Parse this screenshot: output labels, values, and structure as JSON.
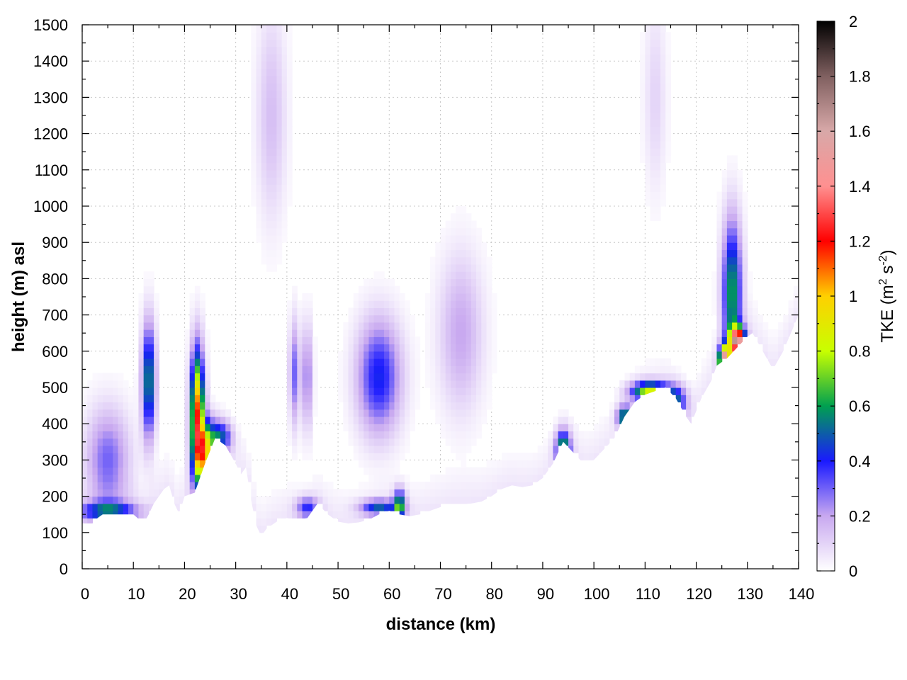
{
  "chart_data": {
    "type": "heatmap",
    "xlabel": "distance (km)",
    "ylabel": "height (m) asl",
    "xlim": [
      0,
      140
    ],
    "ylim": [
      0,
      1500
    ],
    "xticks": [
      "0",
      "10",
      "20",
      "30",
      "40",
      "50",
      "60",
      "70",
      "80",
      "90",
      "100",
      "110",
      "120",
      "130",
      "140"
    ],
    "yticks": [
      "0",
      "100",
      "200",
      "300",
      "400",
      "500",
      "600",
      "700",
      "800",
      "900",
      "1000",
      "1100",
      "1200",
      "1300",
      "1400",
      "1500"
    ],
    "grid": true,
    "colorbar": {
      "title": "TKE (m",
      "title_sup1": "2",
      "title_mid": " s",
      "title_sup2": "-2",
      "title_end": ")",
      "range": [
        0,
        2
      ],
      "ticks": [
        "0",
        "0.2",
        "0.4",
        "0.6",
        "0.8",
        "1",
        "1.2",
        "1.4",
        "1.6",
        "1.8",
        "2"
      ],
      "stops": [
        {
          "v": 0.0,
          "color": "#ffffff"
        },
        {
          "v": 0.2,
          "color": "#c8a8f0"
        },
        {
          "v": 0.4,
          "color": "#1a1aff"
        },
        {
          "v": 0.6,
          "color": "#00a050"
        },
        {
          "v": 0.8,
          "color": "#c8ff00"
        },
        {
          "v": 1.0,
          "color": "#ffd000"
        },
        {
          "v": 1.2,
          "color": "#ff0000"
        },
        {
          "v": 1.4,
          "color": "#ff9090"
        },
        {
          "v": 1.6,
          "color": "#d8a8a8"
        },
        {
          "v": 1.8,
          "color": "#806060"
        },
        {
          "v": 2.0,
          "color": "#000000"
        }
      ]
    },
    "terrain": [
      [
        0,
        125
      ],
      [
        2,
        125
      ],
      [
        3,
        140
      ],
      [
        4,
        150
      ],
      [
        6,
        150
      ],
      [
        8,
        150
      ],
      [
        10,
        150
      ],
      [
        12,
        125
      ],
      [
        13,
        150
      ],
      [
        14,
        180
      ],
      [
        16,
        220
      ],
      [
        17,
        230
      ],
      [
        18,
        180
      ],
      [
        19,
        150
      ],
      [
        20,
        200
      ],
      [
        22,
        210
      ],
      [
        24,
        290
      ],
      [
        26,
        360
      ],
      [
        28,
        340
      ],
      [
        30,
        290
      ],
      [
        31,
        260
      ],
      [
        32,
        280
      ],
      [
        33,
        190
      ],
      [
        34,
        120
      ],
      [
        35,
        90
      ],
      [
        36,
        110
      ],
      [
        38,
        130
      ],
      [
        40,
        140
      ],
      [
        42,
        135
      ],
      [
        44,
        140
      ],
      [
        46,
        180
      ],
      [
        48,
        150
      ],
      [
        50,
        130
      ],
      [
        52,
        125
      ],
      [
        54,
        128
      ],
      [
        56,
        135
      ],
      [
        58,
        150
      ],
      [
        60,
        160
      ],
      [
        62,
        150
      ],
      [
        64,
        145
      ],
      [
        66,
        150
      ],
      [
        68,
        160
      ],
      [
        70,
        170
      ],
      [
        72,
        175
      ],
      [
        76,
        180
      ],
      [
        78,
        185
      ],
      [
        80,
        200
      ],
      [
        82,
        220
      ],
      [
        84,
        230
      ],
      [
        86,
        225
      ],
      [
        88,
        230
      ],
      [
        90,
        250
      ],
      [
        92,
        290
      ],
      [
        94,
        350
      ],
      [
        96,
        320
      ],
      [
        98,
        290
      ],
      [
        100,
        300
      ],
      [
        102,
        330
      ],
      [
        104,
        360
      ],
      [
        106,
        420
      ],
      [
        108,
        460
      ],
      [
        110,
        480
      ],
      [
        112,
        490
      ],
      [
        114,
        500
      ],
      [
        116,
        470
      ],
      [
        118,
        420
      ],
      [
        119,
        400
      ],
      [
        121,
        470
      ],
      [
        123,
        520
      ],
      [
        124,
        560
      ],
      [
        126,
        580
      ],
      [
        128,
        610
      ],
      [
        130,
        640
      ],
      [
        131,
        650
      ],
      [
        133,
        600
      ],
      [
        135,
        550
      ],
      [
        137,
        600
      ],
      [
        140,
        700
      ]
    ],
    "blobs": [
      {
        "x": 5,
        "y": 300,
        "sx": 3.0,
        "sy": 100,
        "v": 0.3
      },
      {
        "x": 5,
        "y": 160,
        "sx": 4.0,
        "sy": 18,
        "v": 0.45
      },
      {
        "x": 13,
        "y": 520,
        "sx": 0.9,
        "sy": 110,
        "v": 0.6
      },
      {
        "x": 22.5,
        "y": 430,
        "sx": 0.9,
        "sy": 120,
        "v": 1.1
      },
      {
        "x": 24,
        "y": 320,
        "sx": 1.3,
        "sy": 60,
        "v": 0.85
      },
      {
        "x": 27,
        "y": 365,
        "sx": 1.5,
        "sy": 30,
        "v": 0.45
      },
      {
        "x": 37,
        "y": 1250,
        "sx": 2.0,
        "sy": 200,
        "v": 0.15
      },
      {
        "x": 41.5,
        "y": 540,
        "sx": 0.7,
        "sy": 100,
        "v": 0.3
      },
      {
        "x": 44,
        "y": 530,
        "sx": 0.7,
        "sy": 100,
        "v": 0.28
      },
      {
        "x": 44,
        "y": 170,
        "sx": 1.5,
        "sy": 20,
        "v": 0.35
      },
      {
        "x": 58,
        "y": 530,
        "sx": 3.0,
        "sy": 110,
        "v": 0.42
      },
      {
        "x": 58,
        "y": 170,
        "sx": 2.5,
        "sy": 15,
        "v": 0.45
      },
      {
        "x": 62,
        "y": 175,
        "sx": 0.8,
        "sy": 30,
        "v": 0.6
      },
      {
        "x": 74,
        "y": 650,
        "sx": 3.0,
        "sy": 150,
        "v": 0.2
      },
      {
        "x": 94,
        "y": 330,
        "sx": 1.0,
        "sy": 35,
        "v": 0.65
      },
      {
        "x": 106,
        "y": 420,
        "sx": 1.0,
        "sy": 20,
        "v": 0.6
      },
      {
        "x": 111,
        "y": 490,
        "sx": 2.5,
        "sy": 18,
        "v": 0.8
      },
      {
        "x": 116,
        "y": 460,
        "sx": 1.5,
        "sy": 30,
        "v": 0.45
      },
      {
        "x": 112,
        "y": 1300,
        "sx": 1.5,
        "sy": 180,
        "v": 0.1
      },
      {
        "x": 127,
        "y": 760,
        "sx": 1.3,
        "sy": 140,
        "v": 0.62
      },
      {
        "x": 125.5,
        "y": 575,
        "sx": 0.7,
        "sy": 25,
        "v": 1.55
      },
      {
        "x": 128,
        "y": 630,
        "sx": 1.0,
        "sy": 25,
        "v": 1.4
      }
    ]
  }
}
